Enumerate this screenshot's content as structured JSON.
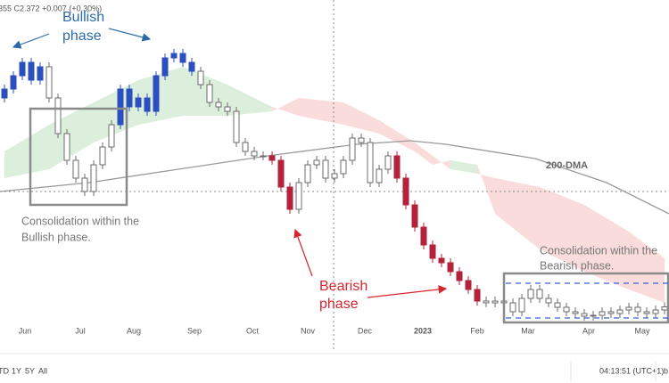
{
  "chart_data": {
    "type": "candlestick",
    "header": "355 C2.372 +0.007 (+0.30%)",
    "xlim": [
      -0.5,
      74.5
    ],
    "ylim": [
      2.25,
      3.75
    ],
    "xticks": [
      {
        "value": 2.3,
        "label": "Jun"
      },
      {
        "value": 8.5,
        "label": "Jul"
      },
      {
        "value": 14.5,
        "label": "Aug"
      },
      {
        "value": 21.3,
        "label": "Sep"
      },
      {
        "value": 27.8,
        "label": "Oct"
      },
      {
        "value": 34,
        "label": "Nov"
      },
      {
        "value": 40.4,
        "label": "Dec"
      },
      {
        "value": 46.9,
        "label": "2023"
      },
      {
        "value": 53,
        "label": "Feb"
      },
      {
        "value": 58.7,
        "label": "Mar"
      },
      {
        "value": 65.5,
        "label": "Apr"
      },
      {
        "value": 71.5,
        "label": "May"
      }
    ],
    "candles": {
      "open": [
        3.31,
        3.35,
        3.41,
        3.47,
        3.39,
        3.45,
        3.31,
        3.15,
        3.03,
        2.95,
        2.89,
        3.01,
        3.09,
        3.19,
        3.35,
        3.27,
        3.31,
        3.25,
        3.41,
        3.49,
        3.51,
        3.47,
        3.43,
        3.37,
        3.29,
        3.27,
        3.25,
        3.11,
        3.07,
        3.05,
        3.05,
        3.03,
        2.91,
        2.81,
        2.93,
        3.01,
        3.03,
        2.95,
        2.97,
        3.03,
        3.13,
        3.11,
        2.93,
        2.99,
        3.05,
        2.95,
        2.83,
        2.73,
        2.65,
        2.59,
        2.57,
        2.53,
        2.49,
        2.45,
        2.398,
        2.39,
        2.398,
        2.39,
        2.35,
        2.41,
        2.45,
        2.41,
        2.39,
        2.37,
        2.35,
        2.342,
        2.33,
        2.334,
        2.35,
        2.342,
        2.358,
        2.37,
        2.35,
        2.342,
        2.358
      ],
      "high": [
        3.37,
        3.43,
        3.49,
        3.49,
        3.47,
        3.47,
        3.33,
        3.17,
        3.05,
        2.97,
        3.03,
        3.11,
        3.21,
        3.37,
        3.37,
        3.33,
        3.33,
        3.43,
        3.51,
        3.53,
        3.53,
        3.49,
        3.45,
        3.39,
        3.31,
        3.29,
        3.27,
        3.13,
        3.09,
        3.07,
        3.07,
        3.05,
        2.93,
        2.95,
        3.03,
        3.05,
        3.05,
        2.99,
        3.05,
        3.15,
        3.15,
        3.13,
        3.01,
        3.07,
        3.07,
        2.97,
        2.85,
        2.75,
        2.67,
        2.61,
        2.59,
        2.55,
        2.51,
        2.47,
        2.418,
        2.418,
        2.418,
        2.41,
        2.43,
        2.47,
        2.47,
        2.43,
        2.41,
        2.39,
        2.37,
        2.362,
        2.354,
        2.37,
        2.37,
        2.378,
        2.39,
        2.39,
        2.37,
        2.378,
        2.392
      ],
      "low": [
        3.29,
        3.33,
        3.39,
        3.37,
        3.37,
        3.29,
        3.13,
        3.01,
        2.93,
        2.87,
        2.87,
        2.99,
        3.07,
        3.17,
        3.25,
        3.25,
        3.23,
        3.23,
        3.39,
        3.47,
        3.45,
        3.41,
        3.35,
        3.27,
        3.25,
        3.23,
        3.09,
        3.05,
        3.03,
        3.03,
        3.01,
        2.89,
        2.79,
        2.79,
        2.91,
        2.99,
        2.93,
        2.93,
        2.95,
        3.01,
        3.09,
        2.91,
        2.91,
        2.97,
        2.93,
        2.81,
        2.71,
        2.63,
        2.57,
        2.55,
        2.51,
        2.47,
        2.43,
        2.378,
        2.37,
        2.37,
        2.37,
        2.33,
        2.33,
        2.39,
        2.39,
        2.37,
        2.35,
        2.33,
        2.322,
        2.31,
        2.31,
        2.314,
        2.322,
        2.322,
        2.338,
        2.33,
        2.322,
        2.322,
        2.338
      ],
      "close": [
        3.35,
        3.41,
        3.47,
        3.39,
        3.45,
        3.31,
        3.15,
        3.03,
        2.95,
        2.89,
        3.01,
        3.09,
        3.19,
        3.35,
        3.27,
        3.31,
        3.25,
        3.41,
        3.49,
        3.51,
        3.47,
        3.43,
        3.37,
        3.29,
        3.27,
        3.25,
        3.11,
        3.07,
        3.05,
        3.05,
        3.03,
        2.91,
        2.81,
        2.93,
        3.01,
        3.03,
        2.95,
        2.97,
        3.03,
        3.13,
        3.11,
        2.93,
        2.99,
        3.05,
        2.95,
        2.83,
        2.73,
        2.65,
        2.59,
        2.57,
        2.53,
        2.49,
        2.45,
        2.398,
        2.39,
        2.398,
        2.39,
        2.35,
        2.41,
        2.45,
        2.41,
        2.39,
        2.37,
        2.35,
        2.342,
        2.33,
        2.334,
        2.35,
        2.342,
        2.358,
        2.37,
        2.35,
        2.342,
        2.358,
        2.372
      ],
      "colors": [
        "#2c4fc0",
        "#2c4fc0",
        "#2c4fc0",
        "#2c4fc0",
        "#2c4fc0",
        "#ffffff",
        "#ffffff",
        "#ffffff",
        "#ffffff",
        "#ffffff",
        "#ffffff",
        "#ffffff",
        "#ffffff",
        "#2c4fc0",
        "#2c4fc0",
        "#2c4fc0",
        "#2c4fc0",
        "#2c4fc0",
        "#2c4fc0",
        "#2c4fc0",
        "#2c4fc0",
        "#2c4fc0",
        "#ffffff",
        "#ffffff",
        "#ffffff",
        "#ffffff",
        "#ffffff",
        "#ffffff",
        "#ffffff",
        "#ffffff",
        "#b3213b",
        "#b3213b",
        "#b3213b",
        "#ffffff",
        "#ffffff",
        "#ffffff",
        "#ffffff",
        "#ffffff",
        "#ffffff",
        "#ffffff",
        "#ffffff",
        "#ffffff",
        "#ffffff",
        "#ffffff",
        "#b3213b",
        "#b3213b",
        "#b3213b",
        "#b3213b",
        "#b3213b",
        "#b3213b",
        "#b3213b",
        "#b3213b",
        "#b3213b",
        "#b3213b",
        "#ffffff",
        "#ffffff",
        "#ffffff",
        "#ffffff",
        "#ffffff",
        "#ffffff",
        "#ffffff",
        "#ffffff",
        "#ffffff",
        "#ffffff",
        "#ffffff",
        "#ffffff",
        "#ffffff",
        "#ffffff",
        "#ffffff",
        "#ffffff",
        "#ffffff",
        "#ffffff",
        "#ffffff",
        "#ffffff",
        "#ffffff"
      ]
    },
    "cloud": {
      "x": [
        0,
        5,
        10,
        15,
        20,
        25,
        30,
        33,
        38,
        42,
        46,
        48,
        50,
        53,
        55,
        60,
        65,
        70,
        74
      ],
      "span_a": [
        3.07,
        3.19,
        3.29,
        3.39,
        3.45,
        3.37,
        3.27,
        3.23,
        3.19,
        3.15,
        3.07,
        3.01,
        3.03,
        3.01,
        2.79,
        2.63,
        2.53,
        2.45,
        2.39
      ],
      "span_b": [
        2.95,
        2.99,
        3.11,
        3.19,
        3.23,
        3.23,
        3.25,
        3.31,
        3.29,
        3.21,
        3.11,
        3.05,
        2.99,
        2.97,
        2.95,
        2.91,
        2.83,
        2.71,
        2.59
      ],
      "up_color": "#dcefdc",
      "down_color": "#fadcdc"
    },
    "dma": {
      "name": "200-DMA",
      "color": "#9a9a9a",
      "x": [
        -0.5,
        9.5,
        19.5,
        29.5,
        39.5,
        45.5,
        49.5,
        59.5,
        67.5,
        74.5
      ],
      "values": [
        2.89,
        2.93,
        2.99,
        3.05,
        3.102,
        3.118,
        3.102,
        3.038,
        2.93,
        2.79
      ]
    },
    "annotations": {
      "bullish": [
        "Bullish",
        "phase"
      ],
      "bearish": [
        "Bearish",
        "phase"
      ],
      "bull_consolidation": [
        "Consolidation within the",
        "Bullish phase."
      ],
      "bear_consolidation": [
        "Consolidation within the",
        "Bearish phase."
      ]
    },
    "toolbar": {
      "ranges": [
        "TD",
        "1Y",
        "5Y",
        "All"
      ],
      "clock": "04:13:51 (UTC+1)",
      "edge": "b"
    }
  }
}
